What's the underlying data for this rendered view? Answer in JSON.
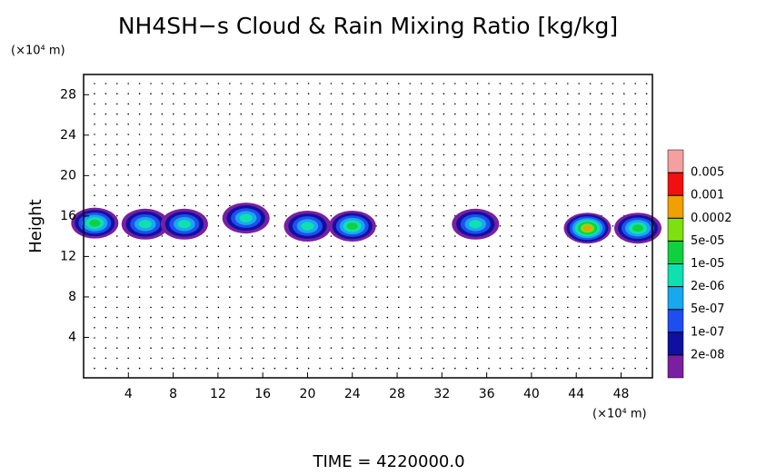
{
  "chart_data": {
    "type": "contour",
    "title": "NH4SH−s Cloud & Rain Mixing Ratio [kg/kg]",
    "y_unit": "(×10⁴ m)",
    "x_unit": "(×10⁴ m)",
    "ylabel": "Height",
    "footer": "TIME = 4220000.0",
    "xlim": [
      0,
      50.8
    ],
    "ylim": [
      0,
      30
    ],
    "xticks": [
      4,
      8,
      12,
      16,
      20,
      24,
      28,
      32,
      36,
      40,
      44,
      48
    ],
    "yticks": [
      4,
      8,
      12,
      16,
      20,
      24,
      28
    ],
    "colorbar": {
      "levels": [
        {
          "value": 2e-08,
          "label": "2e-08"
        },
        {
          "value": 1e-07,
          "label": "1e-07"
        },
        {
          "value": 5e-07,
          "label": "5e-07"
        },
        {
          "value": 2e-06,
          "label": "2e-06"
        },
        {
          "value": 1e-05,
          "label": "1e-05"
        },
        {
          "value": 5e-05,
          "label": "5e-05"
        },
        0.0002,
        0.001,
        0.005
      ],
      "colors": [
        "#7a1fa2",
        "#1010a0",
        "#1f4ef0",
        "#18a8f0",
        "#10e0b0",
        "#10d040",
        "#7ee010",
        "#f0a000",
        "#f01010",
        "#f4a0a0"
      ]
    },
    "cloud_cores": {
      "x": [
        1,
        5.5,
        9,
        14.5,
        20,
        24,
        35,
        45,
        49.5
      ],
      "y": [
        15.3,
        15.2,
        15.2,
        15.8,
        15,
        15,
        15.2,
        14.8,
        14.8
      ],
      "values": [
        1e-05,
        5e-06,
        5e-06,
        5e-06,
        5e-06,
        1e-05,
        2e-06,
        0.0002,
        1e-05
      ]
    }
  }
}
